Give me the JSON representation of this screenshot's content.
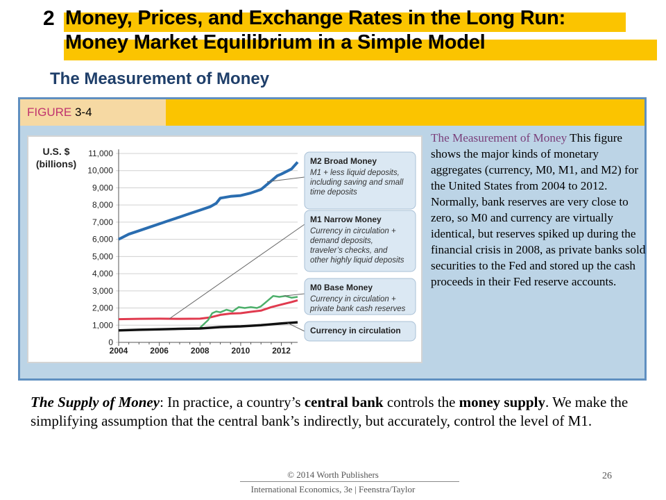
{
  "header": {
    "number": "2",
    "title_line1": "Money, Prices, and Exchange Rates in the Long Run:",
    "title_line2": "Money Market Equilibrium in a Simple Model",
    "subtitle": "The Measurement of Money"
  },
  "figure": {
    "label_word": "FIGURE",
    "label_num": " 3-4",
    "caption_title": "The Measurement of Money",
    "caption_body": " This figure shows the major kinds of monetary aggregates (currency, M0, M1, and M2) for the United States from 2004 to 2012. Normally, bank reserves are very close to zero, so M0 and currency are virtually identical, but reserves spiked up during the financial crisis in 2008, as private banks sold securities to the Fed and stored up the cash proceeds in their Fed reserve accounts."
  },
  "chart_data": {
    "type": "line",
    "ylabel": "U.S. $\n(billions)",
    "xlim": [
      2004,
      2012.8
    ],
    "ylim": [
      0,
      11000
    ],
    "y_ticks": [
      "0",
      "1,000",
      "2,000",
      "3,000",
      "4,000",
      "5,000",
      "6,000",
      "7,000",
      "8,000",
      "9,000",
      "10,000",
      "11,000"
    ],
    "x_ticks": [
      "2004",
      "2006",
      "2008",
      "2010",
      "2012"
    ],
    "grid": true,
    "series": [
      {
        "name": "M2 Broad Money",
        "color": "#2a6db0",
        "x": [
          2004.0,
          2004.5,
          2005.0,
          2005.5,
          2006.0,
          2006.5,
          2007.0,
          2007.5,
          2008.0,
          2008.5,
          2008.8,
          2009.0,
          2009.5,
          2010.0,
          2010.5,
          2011.0,
          2011.5,
          2011.8,
          2012.0,
          2012.5,
          2012.8
        ],
        "y": [
          6000,
          6300,
          6500,
          6700,
          6900,
          7100,
          7300,
          7500,
          7700,
          7900,
          8100,
          8400,
          8500,
          8550,
          8700,
          8900,
          9400,
          9700,
          9800,
          10100,
          10500
        ]
      },
      {
        "name": "M1 Narrow Money",
        "color": "#e03a4e",
        "x": [
          2004.0,
          2005.0,
          2006.0,
          2007.0,
          2008.0,
          2008.5,
          2009.0,
          2009.5,
          2010.0,
          2010.5,
          2011.0,
          2011.5,
          2012.0,
          2012.5,
          2012.8
        ],
        "y": [
          1350,
          1370,
          1380,
          1370,
          1380,
          1450,
          1600,
          1680,
          1700,
          1780,
          1850,
          2050,
          2200,
          2350,
          2450
        ]
      },
      {
        "name": "M0 Base Money",
        "color": "#4caf6a",
        "x": [
          2008.0,
          2008.4,
          2008.6,
          2008.8,
          2009.0,
          2009.3,
          2009.6,
          2009.9,
          2010.2,
          2010.5,
          2010.8,
          2011.0,
          2011.3,
          2011.6,
          2011.9,
          2012.2,
          2012.5,
          2012.8
        ],
        "y": [
          850,
          1300,
          1700,
          1800,
          1750,
          1900,
          1800,
          2050,
          2000,
          2050,
          2000,
          2100,
          2400,
          2700,
          2650,
          2700,
          2600,
          2650
        ]
      },
      {
        "name": "Currency in circulation",
        "color": "#111111",
        "x": [
          2004.0,
          2005.0,
          2006.0,
          2007.0,
          2008.0,
          2008.5,
          2009.0,
          2010.0,
          2011.0,
          2012.0,
          2012.8
        ],
        "y": [
          700,
          730,
          760,
          790,
          810,
          850,
          890,
          930,
          1000,
          1100,
          1170
        ]
      }
    ],
    "legend": [
      {
        "title": "M2 Broad Money",
        "desc": [
          "M1 + less liquid deposits,",
          "including saving and small",
          "time deposits"
        ]
      },
      {
        "title": "M1 Narrow Money",
        "desc": [
          "Currency in circulation +",
          "demand deposits,",
          "traveler’s checks, and",
          "other highly liquid deposits"
        ]
      },
      {
        "title": "M0 Base Money",
        "desc": [
          "Currency in circulation +",
          "private bank cash reserves"
        ]
      },
      {
        "title": "Currency in circulation",
        "desc": []
      }
    ]
  },
  "body": {
    "lead_italic": "The Supply of Money",
    "t1": ": In practice, a country’s ",
    "b1": "central bank",
    "t2": " controls the ",
    "b2": "money supply",
    "t3": ". We make the simplifying assumption that the central bank’s indirectly, but accurately, control the level of M1."
  },
  "footer": {
    "copyright": "© 2014 Worth Publishers",
    "book": "International Economics, 3e  |  Feenstra/Taylor",
    "page": "26"
  }
}
